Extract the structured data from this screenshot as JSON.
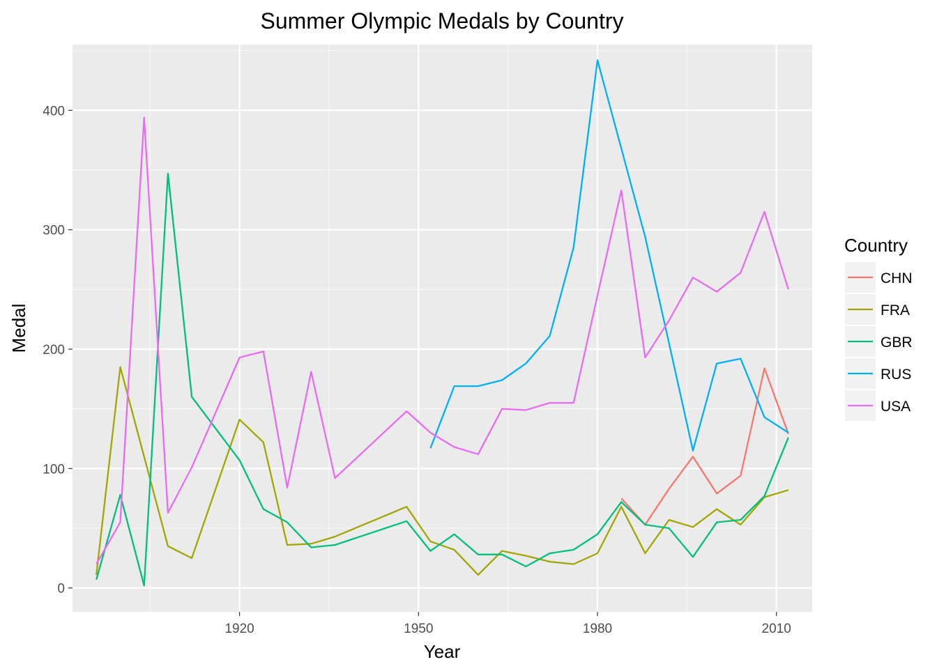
{
  "chart_data": {
    "type": "line",
    "title": "Summer Olympic Medals by Country",
    "xlabel": "Year",
    "ylabel": "Medal",
    "xlim": [
      1892,
      2016
    ],
    "ylim": [
      -20,
      455
    ],
    "xticks": [
      1920,
      1950,
      1980,
      2010
    ],
    "xticks_minor": [
      1905,
      1935,
      1965,
      1995
    ],
    "yticks": [
      0,
      100,
      200,
      300,
      400
    ],
    "yticks_minor": [
      50,
      150,
      250,
      350,
      450
    ],
    "grid": true,
    "legend": {
      "title": "Country",
      "position": "right"
    },
    "series": [
      {
        "name": "CHN",
        "color": "#F8766D",
        "x": [
          1984,
          1988,
          1992,
          1996,
          2000,
          2004,
          2008,
          2012
        ],
        "y": [
          75,
          53,
          83,
          110,
          79,
          94,
          184,
          129
        ]
      },
      {
        "name": "FRA",
        "color": "#A3A500",
        "x": [
          1896,
          1900,
          1904,
          1908,
          1912,
          1920,
          1924,
          1928,
          1932,
          1936,
          1948,
          1952,
          1956,
          1960,
          1964,
          1968,
          1972,
          1976,
          1980,
          1984,
          1988,
          1992,
          1996,
          2000,
          2004,
          2008,
          2012
        ],
        "y": [
          11,
          185,
          110,
          35,
          25,
          141,
          122,
          36,
          37,
          43,
          68,
          39,
          32,
          11,
          31,
          27,
          22,
          20,
          29,
          68,
          29,
          57,
          51,
          66,
          53,
          76,
          82
        ]
      },
      {
        "name": "GBR",
        "color": "#00BF7D",
        "x": [
          1896,
          1900,
          1904,
          1908,
          1912,
          1920,
          1924,
          1928,
          1932,
          1936,
          1948,
          1952,
          1956,
          1960,
          1964,
          1968,
          1972,
          1976,
          1980,
          1984,
          1988,
          1992,
          1996,
          2000,
          2004,
          2008,
          2012
        ],
        "y": [
          7,
          78,
          2,
          347,
          160,
          107,
          66,
          55,
          34,
          36,
          56,
          31,
          45,
          28,
          28,
          18,
          29,
          32,
          45,
          72,
          53,
          50,
          26,
          55,
          57,
          77,
          126
        ]
      },
      {
        "name": "RUS",
        "color": "#00B0F6",
        "x": [
          1952,
          1956,
          1960,
          1964,
          1968,
          1972,
          1976,
          1980,
          1984,
          1988,
          1992,
          1996,
          2000,
          2004,
          2008,
          2012
        ],
        "y": [
          117,
          169,
          169,
          174,
          188,
          211,
          285,
          442,
          368,
          294,
          205,
          115,
          188,
          192,
          143,
          130
        ]
      },
      {
        "name": "USA",
        "color": "#E76BF3",
        "x": [
          1896,
          1900,
          1904,
          1908,
          1912,
          1920,
          1924,
          1928,
          1932,
          1936,
          1948,
          1952,
          1956,
          1960,
          1964,
          1968,
          1972,
          1976,
          1980,
          1984,
          1988,
          1992,
          1996,
          2000,
          2004,
          2008,
          2012
        ],
        "y": [
          20,
          55,
          394,
          63,
          101,
          193,
          198,
          84,
          181,
          92,
          148,
          130,
          118,
          112,
          150,
          149,
          155,
          155,
          245,
          333,
          193,
          224,
          260,
          248,
          264,
          315,
          250
        ]
      }
    ]
  }
}
